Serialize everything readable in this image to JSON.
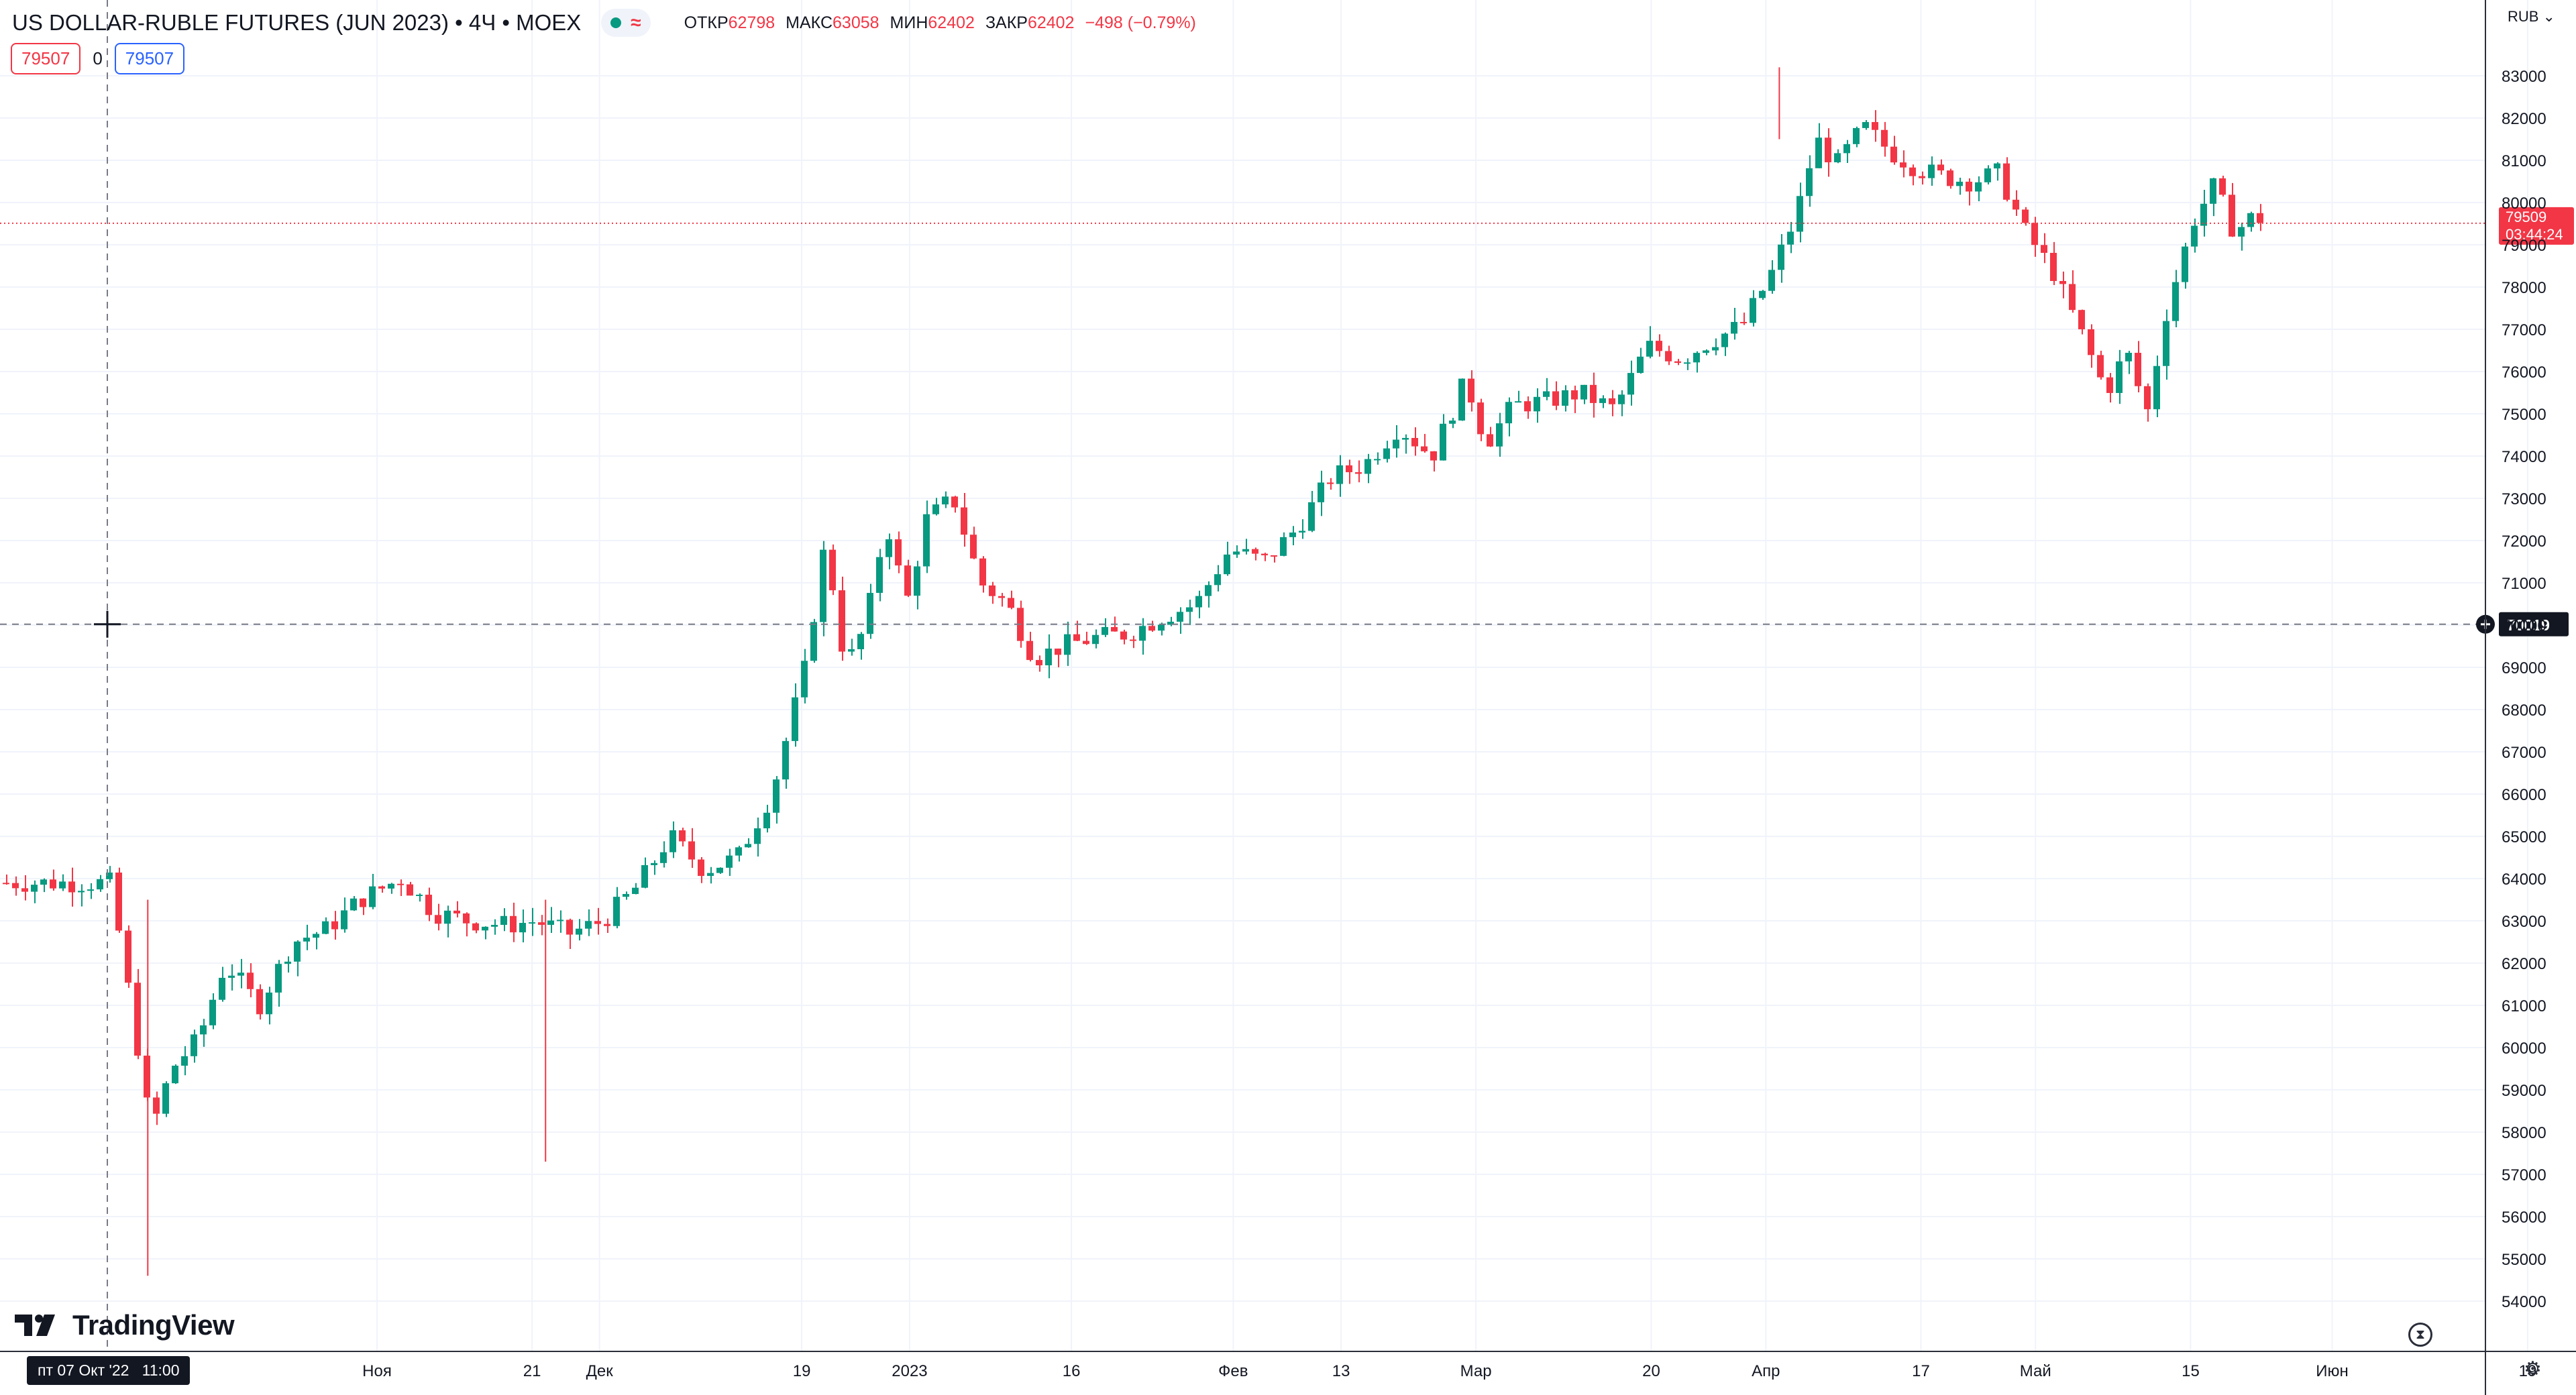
{
  "header": {
    "symbol": "US DOLLAR-RUBLE FUTURES (JUN 2023) • 4Ч • MOEX",
    "status_icon": "green-dot-icon",
    "approx_icon": "≈",
    "ohlc": {
      "open_label": "ОТКР",
      "open": "62798",
      "high_label": "МАКС",
      "high": "63058",
      "low_label": "МИН",
      "low": "62402",
      "close_label": "ЗАКР",
      "close": "62402",
      "change": "−498 (−0.79%)"
    }
  },
  "quote": {
    "sell": "79507",
    "spread": "0",
    "buy": "79507"
  },
  "price_axis": {
    "currency": "RUB ⌄",
    "last_price": "79509",
    "countdown": "03:44:24",
    "crosshair_price": "70019"
  },
  "crosshair": {
    "time_label": "пт 07 Окт '22   11:00",
    "price": 70019
  },
  "logo": {
    "text": "TradingView"
  },
  "colors": {
    "up": "#089981",
    "down": "#f23645",
    "grid": "#f0f3fa",
    "text": "#131722"
  },
  "chart_data": {
    "type": "candlestick",
    "title": "US DOLLAR-RUBLE FUTURES (JUN 2023)",
    "timeframe": "4Ч",
    "exchange": "MOEX",
    "currency": "RUB",
    "ylim": [
      53000,
      84000
    ],
    "y_ticks": [
      54000,
      55000,
      56000,
      57000,
      58000,
      59000,
      60000,
      61000,
      62000,
      63000,
      64000,
      65000,
      66000,
      67000,
      68000,
      69000,
      70000,
      71000,
      72000,
      73000,
      74000,
      75000,
      76000,
      77000,
      78000,
      79000,
      80000,
      81000,
      82000,
      83000
    ],
    "x_labels": [
      {
        "label": "Ноя",
        "week": 4
      },
      {
        "label": "21",
        "week": 6.3
      },
      {
        "label": "Дек",
        "week": 7.3
      },
      {
        "label": "19",
        "week": 10.3
      },
      {
        "label": "2023",
        "week": 11.9
      },
      {
        "label": "16",
        "week": 14.3
      },
      {
        "label": "Фев",
        "week": 16.7
      },
      {
        "label": "13",
        "week": 18.3
      },
      {
        "label": "Мар",
        "week": 20.3
      },
      {
        "label": "20",
        "week": 22.9
      },
      {
        "label": "Апр",
        "week": 24.6
      },
      {
        "label": "17",
        "week": 26.9
      },
      {
        "label": "Май",
        "week": 28.6
      },
      {
        "label": "15",
        "week": 30.9
      },
      {
        "label": "Июн",
        "week": 33
      },
      {
        "label": "19",
        "week": 35.9
      }
    ],
    "weekly_closes": [
      {
        "week": 0,
        "close": 63900
      },
      {
        "week": 0.3,
        "close": 61000
      },
      {
        "week": 0.6,
        "close": 58000
      },
      {
        "week": 0.9,
        "close": 59500
      },
      {
        "week": 1.3,
        "close": 60200
      },
      {
        "week": 1.7,
        "close": 62000
      },
      {
        "week": 2.2,
        "close": 61000
      },
      {
        "week": 2.7,
        "close": 62500
      },
      {
        "week": 3.2,
        "close": 62800
      },
      {
        "week": 3.7,
        "close": 63500
      },
      {
        "week": 4.3,
        "close": 64000
      },
      {
        "week": 4.8,
        "close": 63200
      },
      {
        "week": 5.3,
        "close": 63000
      },
      {
        "week": 5.9,
        "close": 62900
      },
      {
        "week": 6.3,
        "close": 63000
      },
      {
        "week": 6.8,
        "close": 62700
      },
      {
        "week": 7.3,
        "close": 63000
      },
      {
        "week": 7.8,
        "close": 63800
      },
      {
        "week": 8.3,
        "close": 65000
      },
      {
        "week": 8.8,
        "close": 64200
      },
      {
        "week": 9.3,
        "close": 64500
      },
      {
        "week": 9.8,
        "close": 66000
      },
      {
        "week": 10.3,
        "close": 69000
      },
      {
        "week": 10.6,
        "close": 72000
      },
      {
        "week": 10.9,
        "close": 69000
      },
      {
        "week": 11.2,
        "close": 70000
      },
      {
        "week": 11.5,
        "close": 72500
      },
      {
        "week": 11.8,
        "close": 70500
      },
      {
        "week": 12.1,
        "close": 72500
      },
      {
        "week": 12.5,
        "close": 73000
      },
      {
        "week": 12.9,
        "close": 71000
      },
      {
        "week": 13.3,
        "close": 70500
      },
      {
        "week": 13.7,
        "close": 69200
      },
      {
        "week": 14.1,
        "close": 69500
      },
      {
        "week": 14.6,
        "close": 69700
      },
      {
        "week": 15.1,
        "close": 69800
      },
      {
        "week": 15.6,
        "close": 70200
      },
      {
        "week": 16.1,
        "close": 70500
      },
      {
        "week": 16.6,
        "close": 71800
      },
      {
        "week": 17.1,
        "close": 71500
      },
      {
        "week": 17.6,
        "close": 72300
      },
      {
        "week": 18.1,
        "close": 73500
      },
      {
        "week": 18.6,
        "close": 73800
      },
      {
        "week": 19.1,
        "close": 74700
      },
      {
        "week": 19.6,
        "close": 74000
      },
      {
        "week": 20.1,
        "close": 75800
      },
      {
        "week": 20.4,
        "close": 74300
      },
      {
        "week": 20.8,
        "close": 75200
      },
      {
        "week": 21.3,
        "close": 75300
      },
      {
        "week": 21.8,
        "close": 75500
      },
      {
        "week": 22.3,
        "close": 75100
      },
      {
        "week": 22.8,
        "close": 76600
      },
      {
        "week": 23.3,
        "close": 76300
      },
      {
        "week": 23.7,
        "close": 76700
      },
      {
        "week": 24.2,
        "close": 77100
      },
      {
        "week": 24.6,
        "close": 78200
      },
      {
        "week": 25.0,
        "close": 79700
      },
      {
        "week": 25.3,
        "close": 81500
      },
      {
        "week": 25.6,
        "close": 80900
      },
      {
        "week": 26.0,
        "close": 81800
      },
      {
        "week": 26.4,
        "close": 81200
      },
      {
        "week": 26.8,
        "close": 80800
      },
      {
        "week": 27.2,
        "close": 80600
      },
      {
        "week": 27.6,
        "close": 80500
      },
      {
        "week": 28.0,
        "close": 80700
      },
      {
        "week": 28.4,
        "close": 79300
      },
      {
        "week": 28.8,
        "close": 78400
      },
      {
        "week": 29.2,
        "close": 77000
      },
      {
        "week": 29.6,
        "close": 75500
      },
      {
        "week": 29.9,
        "close": 76500
      },
      {
        "week": 30.2,
        "close": 75000
      },
      {
        "week": 30.5,
        "close": 77500
      },
      {
        "week": 30.9,
        "close": 79600
      },
      {
        "week": 31.2,
        "close": 80400
      },
      {
        "week": 31.5,
        "close": 79300
      },
      {
        "week": 31.8,
        "close": 79700
      },
      {
        "week": 32.0,
        "close": 79509
      }
    ],
    "spikes": [
      {
        "week": 0.6,
        "low": 54600
      },
      {
        "week": 6.5,
        "low": 57300
      },
      {
        "week": 24.8,
        "high": 83200
      }
    ],
    "last_price": 79509
  }
}
